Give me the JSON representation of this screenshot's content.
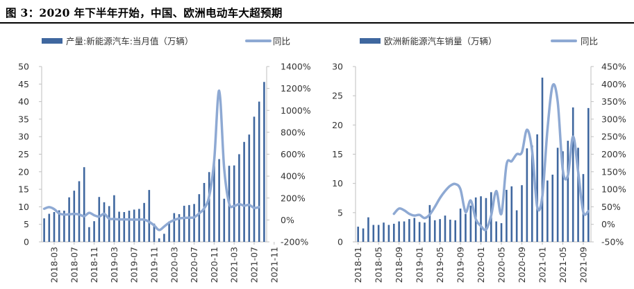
{
  "header": {
    "title": "图 3：2020 年下半年开始，中国、欧洲电动车大超预期"
  },
  "colors": {
    "bar": "#3f679f",
    "line": "#8ea9d3",
    "axis": "#bfbfbf"
  },
  "chart_data": [
    {
      "type": "bar",
      "legend": [
        "产量:新能源汽车:当月值（万辆）",
        "同比"
      ],
      "series": [
        {
          "name": "产量:新能源汽车:当月值（万辆）",
          "axis": "left",
          "values": [
            6.7,
            8.0,
            8.5,
            9.0,
            8.9,
            12.7,
            14.6,
            17.3,
            21.3,
            4.2,
            5.9,
            12.8,
            11.3,
            10.2,
            13.3,
            8.6,
            8.5,
            8.9,
            9.2,
            9.4,
            11.1,
            14.8,
            5.2,
            1.0,
            2.3,
            5.8,
            8.2,
            7.9,
            10.3,
            10.5,
            10.8,
            13.6,
            16.8,
            19.9,
            23.6,
            23.6,
            12.3,
            21.7,
            21.8,
            25.0,
            28.5,
            30.6,
            35.7,
            40.0,
            45.6
          ]
        },
        {
          "name": "同比",
          "axis": "right",
          "values": [
            102,
            117,
            99,
            60,
            49,
            52,
            55,
            50,
            35,
            65,
            43,
            31,
            56,
            12,
            9,
            5,
            5,
            4,
            3,
            3,
            3,
            -17,
            -50,
            -92,
            -60,
            -24,
            -1,
            14,
            18,
            21,
            24,
            60,
            105,
            215,
            540,
            1180,
            472,
            150,
            128,
            145,
            130,
            138,
            110,
            117
          ]
        }
      ],
      "x_tick_labels": [
        "2018-03",
        "2018-07",
        "2018-11",
        "2019-03",
        "2019-07",
        "2019-11",
        "2020-03",
        "2020-07",
        "2020-11",
        "2021-03",
        "2021-07",
        "2021-11"
      ],
      "y_left": {
        "ylim": [
          0,
          50
        ],
        "ticks": [
          "0",
          "5",
          "10",
          "15",
          "20",
          "25",
          "30",
          "35",
          "40",
          "45",
          "50"
        ]
      },
      "y_right": {
        "ylim": [
          -200,
          1400
        ],
        "ticks": [
          "-200%",
          "0%",
          "200%",
          "400%",
          "600%",
          "800%",
          "1000%",
          "1200%",
          "1400%"
        ]
      },
      "legend_position": "top"
    },
    {
      "type": "bar",
      "legend": [
        "欧洲新能源汽车销量（万辆）",
        "同比"
      ],
      "series": [
        {
          "name": "欧洲新能源汽车销量（万辆）",
          "axis": "left",
          "values": [
            2.6,
            2.3,
            4.2,
            2.9,
            2.9,
            3.3,
            2.9,
            3.1,
            3.5,
            3.5,
            3.9,
            4.1,
            3.4,
            3.3,
            6.3,
            3.7,
            3.9,
            4.5,
            3.8,
            3.7,
            5.7,
            4.8,
            6.2,
            7.6,
            7.8,
            7.5,
            8.5,
            3.5,
            3.2,
            8.9,
            9.5,
            5.4,
            9.7,
            16.0,
            16.5,
            18.4,
            28.1,
            10.5,
            11.5,
            16.1,
            15.5,
            17.3,
            23.0,
            16.1,
            11.6,
            22.9
          ]
        },
        {
          "name": "同比",
          "axis": "right",
          "values": [
            30,
            45,
            40,
            30,
            25,
            27,
            18,
            28,
            50,
            75,
            95,
            110,
            115,
            100,
            35,
            68,
            15,
            -5,
            -15,
            25,
            95,
            30,
            170,
            180,
            200,
            205,
            270,
            210,
            50,
            80,
            270,
            395,
            350,
            155,
            140,
            250,
            150,
            35,
            38
          ]
        }
      ],
      "x_tick_labels": [
        "2018-01",
        "2018-05",
        "2018-09",
        "2019-01",
        "2019-05",
        "2019-09",
        "2020-01",
        "2020-05",
        "2020-09",
        "2021-01",
        "2021-05",
        "2021-09"
      ],
      "y_left": {
        "ylim": [
          0,
          30
        ],
        "ticks": [
          "0",
          "5",
          "10",
          "15",
          "20",
          "25",
          "30"
        ]
      },
      "y_right": {
        "ylim": [
          -50,
          450
        ],
        "ticks": [
          "-50%",
          "0%",
          "50%",
          "100%",
          "150%",
          "200%",
          "250%",
          "300%",
          "350%",
          "400%",
          "450%"
        ]
      },
      "legend_position": "top"
    }
  ]
}
